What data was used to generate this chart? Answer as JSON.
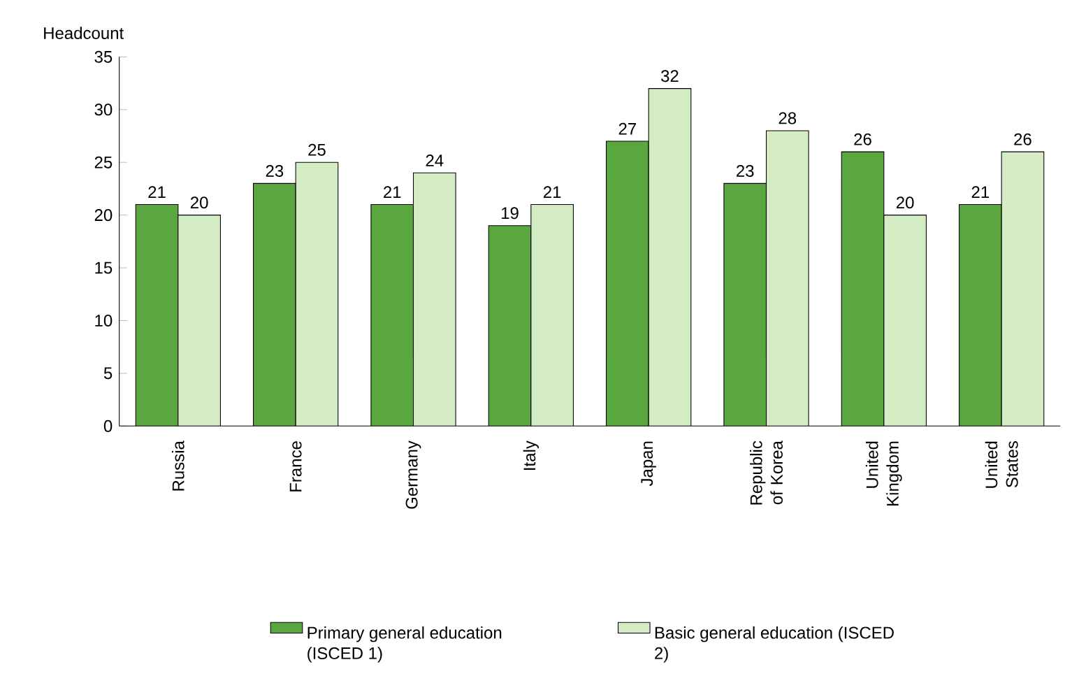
{
  "chart_data": {
    "type": "bar",
    "ylabel": "Headcount",
    "categories": [
      "Russia",
      "France",
      "Germany",
      "Italy",
      "Japan",
      "Republic of Korea",
      "United Kingdom",
      "United States"
    ],
    "series": [
      {
        "name": "Primary general education (ISCED 1)",
        "color": "#5aa63f",
        "values": [
          21,
          23,
          21,
          19,
          27,
          23,
          26,
          21
        ]
      },
      {
        "name": "Basic general education (ISCED 2)",
        "color": "#d4ecc4",
        "values": [
          20,
          25,
          24,
          21,
          32,
          28,
          20,
          26
        ]
      }
    ],
    "ylim": [
      0,
      35
    ],
    "yticks": [
      0,
      5,
      10,
      15,
      20,
      25,
      30,
      35
    ],
    "data_labels": true,
    "legend": "bottom"
  }
}
